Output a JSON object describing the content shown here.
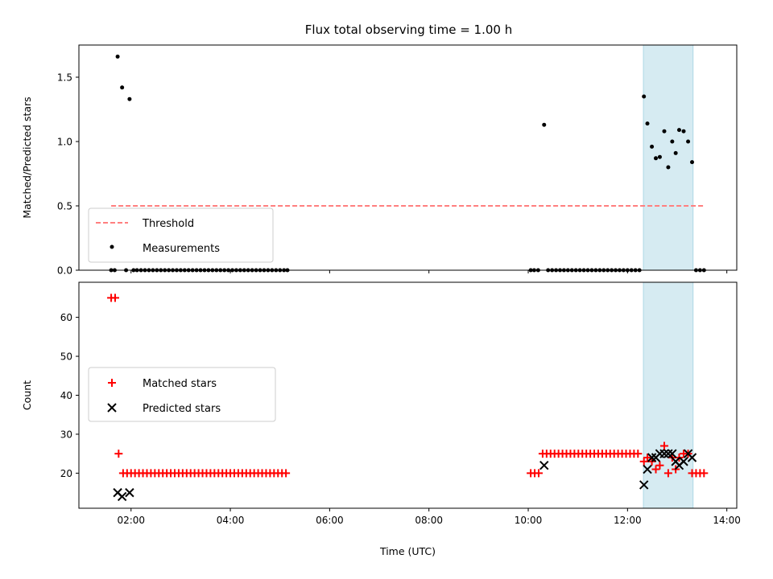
{
  "chart_data": {
    "title": "Flux total observing time = 1.00 h",
    "xlabel": "Time (UTC)",
    "x_unit": "hours UTC",
    "xlim": [
      0.95,
      14.2
    ],
    "xticks": [
      2,
      4,
      6,
      8,
      10,
      12,
      14
    ],
    "xtick_labels": [
      "02:00",
      "04:00",
      "06:00",
      "08:00",
      "10:00",
      "12:00",
      "14:00"
    ],
    "highlight_band": {
      "x_start": 12.32,
      "x_end": 13.32,
      "color": "#add8e6"
    },
    "panels": [
      {
        "type": "scatter",
        "ylabel": "Matched/Predicted stars",
        "ylim": [
          0,
          1.75
        ],
        "yticks": [
          0.0,
          0.5,
          1.0,
          1.5
        ],
        "ytick_labels": [
          "0.0",
          "0.5",
          "1.0",
          "1.5"
        ],
        "legend_position": "lower-left",
        "threshold": {
          "name": "Threshold",
          "y": 0.5,
          "x_start": 1.6,
          "x_end": 13.55,
          "color": "#ff7f7f"
        },
        "series": [
          {
            "name": "Measurements",
            "marker": "dot",
            "color": "#000000",
            "points": [
              [
                1.6,
                0
              ],
              [
                1.67,
                0
              ],
              [
                1.73,
                1.66
              ],
              [
                1.82,
                1.42
              ],
              [
                1.9,
                0
              ],
              [
                1.97,
                1.33
              ],
              [
                2.05,
                0
              ],
              [
                2.12,
                0
              ],
              [
                2.2,
                0
              ],
              [
                2.28,
                0
              ],
              [
                2.36,
                0
              ],
              [
                2.44,
                0
              ],
              [
                2.52,
                0
              ],
              [
                2.6,
                0
              ],
              [
                2.68,
                0
              ],
              [
                2.76,
                0
              ],
              [
                2.84,
                0
              ],
              [
                2.92,
                0
              ],
              [
                3.0,
                0
              ],
              [
                3.08,
                0
              ],
              [
                3.16,
                0
              ],
              [
                3.24,
                0
              ],
              [
                3.32,
                0
              ],
              [
                3.4,
                0
              ],
              [
                3.48,
                0
              ],
              [
                3.56,
                0
              ],
              [
                3.64,
                0
              ],
              [
                3.72,
                0
              ],
              [
                3.8,
                0
              ],
              [
                3.88,
                0
              ],
              [
                3.96,
                0
              ],
              [
                4.04,
                0
              ],
              [
                4.12,
                0
              ],
              [
                4.2,
                0
              ],
              [
                4.28,
                0
              ],
              [
                4.36,
                0
              ],
              [
                4.44,
                0
              ],
              [
                4.52,
                0
              ],
              [
                4.6,
                0
              ],
              [
                4.68,
                0
              ],
              [
                4.76,
                0
              ],
              [
                4.84,
                0
              ],
              [
                4.92,
                0
              ],
              [
                5.0,
                0
              ],
              [
                5.08,
                0
              ],
              [
                5.15,
                0
              ],
              [
                10.05,
                0
              ],
              [
                10.12,
                0
              ],
              [
                10.2,
                0
              ],
              [
                10.32,
                1.13
              ],
              [
                10.4,
                0
              ],
              [
                10.48,
                0
              ],
              [
                10.56,
                0
              ],
              [
                10.64,
                0
              ],
              [
                10.72,
                0
              ],
              [
                10.8,
                0
              ],
              [
                10.88,
                0
              ],
              [
                10.96,
                0
              ],
              [
                11.04,
                0
              ],
              [
                11.12,
                0
              ],
              [
                11.2,
                0
              ],
              [
                11.28,
                0
              ],
              [
                11.36,
                0
              ],
              [
                11.44,
                0
              ],
              [
                11.52,
                0
              ],
              [
                11.6,
                0
              ],
              [
                11.68,
                0
              ],
              [
                11.76,
                0
              ],
              [
                11.84,
                0
              ],
              [
                11.92,
                0
              ],
              [
                12.0,
                0
              ],
              [
                12.08,
                0
              ],
              [
                12.16,
                0
              ],
              [
                12.24,
                0
              ],
              [
                12.33,
                1.35
              ],
              [
                12.4,
                1.14
              ],
              [
                12.49,
                0.96
              ],
              [
                12.57,
                0.87
              ],
              [
                12.65,
                0.88
              ],
              [
                12.74,
                1.08
              ],
              [
                12.82,
                0.8
              ],
              [
                12.9,
                1.0
              ],
              [
                12.97,
                0.91
              ],
              [
                13.04,
                1.09
              ],
              [
                13.13,
                1.08
              ],
              [
                13.22,
                1.0
              ],
              [
                13.3,
                0.84
              ],
              [
                13.38,
                0
              ],
              [
                13.46,
                0
              ],
              [
                13.54,
                0
              ]
            ]
          }
        ]
      },
      {
        "type": "scatter",
        "ylabel": "Count",
        "ylim": [
          11,
          69
        ],
        "yticks": [
          20,
          30,
          40,
          50,
          60
        ],
        "ytick_labels": [
          "20",
          "30",
          "40",
          "50",
          "60"
        ],
        "legend_position": "center-left",
        "series": [
          {
            "name": "Matched stars",
            "marker": "plus",
            "color": "#ff0000",
            "points": [
              [
                1.6,
                65
              ],
              [
                1.68,
                65
              ],
              [
                1.75,
                25
              ],
              [
                1.84,
                20
              ],
              [
                1.92,
                20
              ],
              [
                2.0,
                20
              ],
              [
                2.08,
                20
              ],
              [
                2.16,
                20
              ],
              [
                2.24,
                20
              ],
              [
                2.32,
                20
              ],
              [
                2.4,
                20
              ],
              [
                2.48,
                20
              ],
              [
                2.56,
                20
              ],
              [
                2.64,
                20
              ],
              [
                2.72,
                20
              ],
              [
                2.8,
                20
              ],
              [
                2.88,
                20
              ],
              [
                2.96,
                20
              ],
              [
                3.04,
                20
              ],
              [
                3.12,
                20
              ],
              [
                3.2,
                20
              ],
              [
                3.28,
                20
              ],
              [
                3.36,
                20
              ],
              [
                3.44,
                20
              ],
              [
                3.52,
                20
              ],
              [
                3.6,
                20
              ],
              [
                3.68,
                20
              ],
              [
                3.76,
                20
              ],
              [
                3.84,
                20
              ],
              [
                3.92,
                20
              ],
              [
                4.0,
                20
              ],
              [
                4.08,
                20
              ],
              [
                4.16,
                20
              ],
              [
                4.24,
                20
              ],
              [
                4.32,
                20
              ],
              [
                4.4,
                20
              ],
              [
                4.48,
                20
              ],
              [
                4.56,
                20
              ],
              [
                4.64,
                20
              ],
              [
                4.72,
                20
              ],
              [
                4.8,
                20
              ],
              [
                4.88,
                20
              ],
              [
                4.96,
                20
              ],
              [
                5.04,
                20
              ],
              [
                5.12,
                20
              ],
              [
                10.05,
                20
              ],
              [
                10.13,
                20
              ],
              [
                10.21,
                20
              ],
              [
                10.29,
                25
              ],
              [
                10.37,
                25
              ],
              [
                10.45,
                25
              ],
              [
                10.53,
                25
              ],
              [
                10.61,
                25
              ],
              [
                10.69,
                25
              ],
              [
                10.77,
                25
              ],
              [
                10.85,
                25
              ],
              [
                10.93,
                25
              ],
              [
                11.01,
                25
              ],
              [
                11.09,
                25
              ],
              [
                11.17,
                25
              ],
              [
                11.25,
                25
              ],
              [
                11.33,
                25
              ],
              [
                11.41,
                25
              ],
              [
                11.49,
                25
              ],
              [
                11.57,
                25
              ],
              [
                11.65,
                25
              ],
              [
                11.73,
                25
              ],
              [
                11.81,
                25
              ],
              [
                11.89,
                25
              ],
              [
                11.97,
                25
              ],
              [
                12.05,
                25
              ],
              [
                12.13,
                25
              ],
              [
                12.21,
                25
              ],
              [
                12.33,
                23
              ],
              [
                12.4,
                24
              ],
              [
                12.49,
                23
              ],
              [
                12.57,
                21
              ],
              [
                12.65,
                22
              ],
              [
                12.74,
                27
              ],
              [
                12.82,
                20
              ],
              [
                12.9,
                24
              ],
              [
                12.97,
                21
              ],
              [
                13.04,
                24
              ],
              [
                13.13,
                25
              ],
              [
                13.22,
                25
              ],
              [
                13.3,
                20
              ],
              [
                13.38,
                20
              ],
              [
                13.46,
                20
              ],
              [
                13.54,
                20
              ]
            ]
          },
          {
            "name": "Predicted stars",
            "marker": "x",
            "color": "#000000",
            "points": [
              [
                1.73,
                15
              ],
              [
                1.82,
                14
              ],
              [
                1.97,
                15
              ],
              [
                10.32,
                22
              ],
              [
                12.33,
                17
              ],
              [
                12.4,
                21
              ],
              [
                12.49,
                24
              ],
              [
                12.57,
                24
              ],
              [
                12.65,
                25
              ],
              [
                12.74,
                25
              ],
              [
                12.82,
                25
              ],
              [
                12.9,
                25
              ],
              [
                12.97,
                23
              ],
              [
                13.04,
                22
              ],
              [
                13.13,
                23
              ],
              [
                13.22,
                25
              ],
              [
                13.3,
                24
              ]
            ]
          }
        ]
      }
    ]
  }
}
